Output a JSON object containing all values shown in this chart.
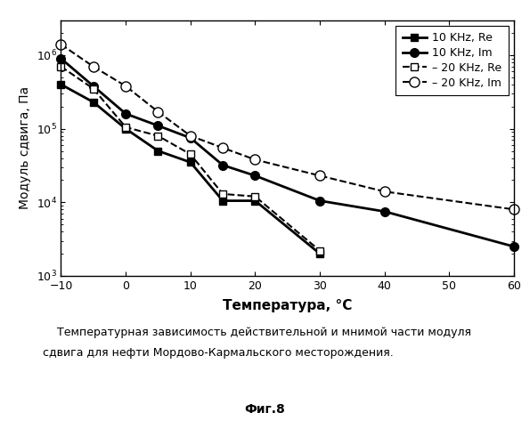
{
  "series": {
    "10kHz_Re": {
      "x": [
        -10,
        -5,
        0,
        5,
        10,
        15,
        20,
        30
      ],
      "y": [
        400000.0,
        230000.0,
        100000.0,
        50000.0,
        35000.0,
        10500.0,
        10500.0,
        2000.0
      ],
      "label": "10 KHz, Re",
      "linestyle": "solid",
      "marker": "s",
      "filled": true,
      "color": "black",
      "linewidth": 2.0
    },
    "10kHz_Im": {
      "x": [
        -10,
        -5,
        0,
        5,
        10,
        15,
        20,
        30,
        40,
        60
      ],
      "y": [
        900000.0,
        380000.0,
        160000.0,
        110000.0,
        75000.0,
        32000.0,
        23000.0,
        10500.0,
        7500.0,
        2500.0
      ],
      "label": "10 KHz, Im",
      "linestyle": "solid",
      "marker": "o",
      "filled": true,
      "color": "black",
      "linewidth": 2.0
    },
    "20kHz_Re": {
      "x": [
        -10,
        -5,
        0,
        5,
        10,
        15,
        20,
        30
      ],
      "y": [
        700000.0,
        350000.0,
        105000.0,
        80000.0,
        45000.0,
        13000.0,
        12000.0,
        2200.0
      ],
      "label": "– 20 KHz, Re",
      "linestyle": "dashed",
      "marker": "s",
      "filled": false,
      "color": "black",
      "linewidth": 1.5
    },
    "20kHz_Im": {
      "x": [
        -10,
        -5,
        0,
        5,
        10,
        15,
        20,
        30,
        40,
        60
      ],
      "y": [
        1400000.0,
        700000.0,
        380000.0,
        170000.0,
        80000.0,
        55000.0,
        38000.0,
        23000.0,
        14000.0,
        8000.0
      ],
      "label": "– 20 KHz, Im",
      "linestyle": "dashed",
      "marker": "o",
      "filled": false,
      "color": "black",
      "linewidth": 1.5
    }
  },
  "xlabel": "Температура, °C",
  "ylabel": "Модуль сдвига, Па",
  "xlim": [
    -10,
    60
  ],
  "ylim": [
    1000.0,
    3000000.0
  ],
  "xticks": [
    -10,
    0,
    10,
    20,
    30,
    40,
    50,
    60
  ],
  "caption": "Температурная зависимость действительной и мнимой части модуля сдвига для нефти Мордово-Кармальского месторождения.",
  "fig_label": "Фиг.8",
  "background_color": "#ffffff"
}
